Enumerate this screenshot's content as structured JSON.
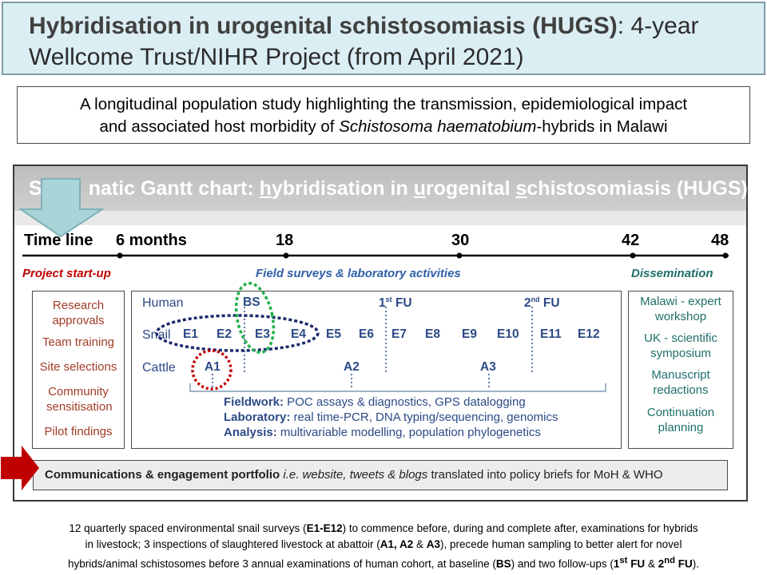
{
  "title": {
    "bold": "Hybridisation in urogenital schistosomiasis (HUGS)",
    "rest": ": 4-year",
    "line2": "Wellcome Trust/NIHR Project (from April 2021)"
  },
  "subtitle": {
    "line1": "A longitudinal population study highlighting the transmission, epidemiological impact",
    "line2_pre": "and associated host morbidity of ",
    "line2_italic": "Schistosoma haematobium",
    "line2_post": "-hybrids in Malawi"
  },
  "gantt": {
    "header": {
      "p1": "S",
      "p2": "natic Gantt chart: ",
      "u1": "h",
      "p3": "ybridisation in ",
      "u2": "u",
      "p4": "rogenital ",
      "u3": "s",
      "p5": "chistosomiasis (HUGS)"
    },
    "timeline": {
      "label": "Time line",
      "marks": [
        "6 months",
        "18",
        "30",
        "42",
        "48"
      ]
    },
    "sections": {
      "startup": "Project start-up",
      "field": "Field surveys & laboratory activities",
      "dissemination": "Dissemination"
    },
    "startup_items": [
      "Research approvals",
      "Team training",
      "Site selections",
      "Community sensitisation",
      "Pilot findings"
    ],
    "rows": {
      "human": "Human",
      "snail": "Snail",
      "cattle": "Cattle"
    },
    "human_events": {
      "bs": "BS",
      "fu1_num": "1",
      "fu1_sup": "st",
      "fu1_txt": " FU",
      "fu2_num": "2",
      "fu2_sup": "nd",
      "fu2_txt": " FU"
    },
    "snail_events": [
      "E1",
      "E2",
      "E3",
      "E4",
      "E5",
      "E6",
      "E7",
      "E8",
      "E9",
      "E10",
      "E11",
      "E12"
    ],
    "cattle_events": [
      "A1",
      "A2",
      "A3"
    ],
    "fieldwork": [
      {
        "label": "Fieldwork:",
        "text": " POC assays & diagnostics, GPS datalogging"
      },
      {
        "label": "Laboratory:",
        "text": " real time-PCR, DNA typing/sequencing, genomics"
      },
      {
        "label": "Analysis:",
        "text": " multivariable modelling, population phylogenetics"
      }
    ],
    "dissemination_items": [
      "Malawi - expert workshop",
      "UK - scientific symposium",
      "Manuscript redactions",
      "Continuation planning"
    ],
    "communications": {
      "bold": "Communications & engagement  portfolio",
      "italic": " i.e. website, tweets & blogs",
      "rest": " translated into policy briefs for MoH & WHO"
    }
  },
  "footnote": {
    "l1a": "12 quarterly spaced environmental snail surveys (",
    "l1b": "E1-E12",
    "l1c": ") to commence before, during and complete after, examinations for hybrids",
    "l2a": "in livestock; 3 inspections of slaughtered livestock at abattoir (",
    "l2b": "A1, A2",
    "l2c": " & ",
    "l2d": "A3",
    "l2e": "), precede human sampling to better alert for novel",
    "l3a": "hybrids/animal schistosomes before 3 annual examinations of human cohort, at baseline (",
    "l3b": "BS",
    "l3c": ") and two follow-ups (",
    "l3d": "1",
    "l3e": "st",
    "l3f": " FU",
    "l3g": " & ",
    "l3h": "2",
    "l3i": "nd",
    "l3j": " FU",
    "l3k": ")."
  },
  "colors": {
    "title_bg": "#dbeef4",
    "startup_red": "#c00000",
    "field_blue": "#2f5fa8",
    "dissemination_teal": "#1f6f6a",
    "snail_ellipse": "#1b2a6b",
    "bs_ellipse": "#22b04b",
    "a1_ellipse": "#c00000",
    "down_arrow": "#a9d4d8",
    "right_arrow": "#c00000"
  },
  "icons": [
    "down-arrow-icon",
    "right-arrow-icon"
  ]
}
